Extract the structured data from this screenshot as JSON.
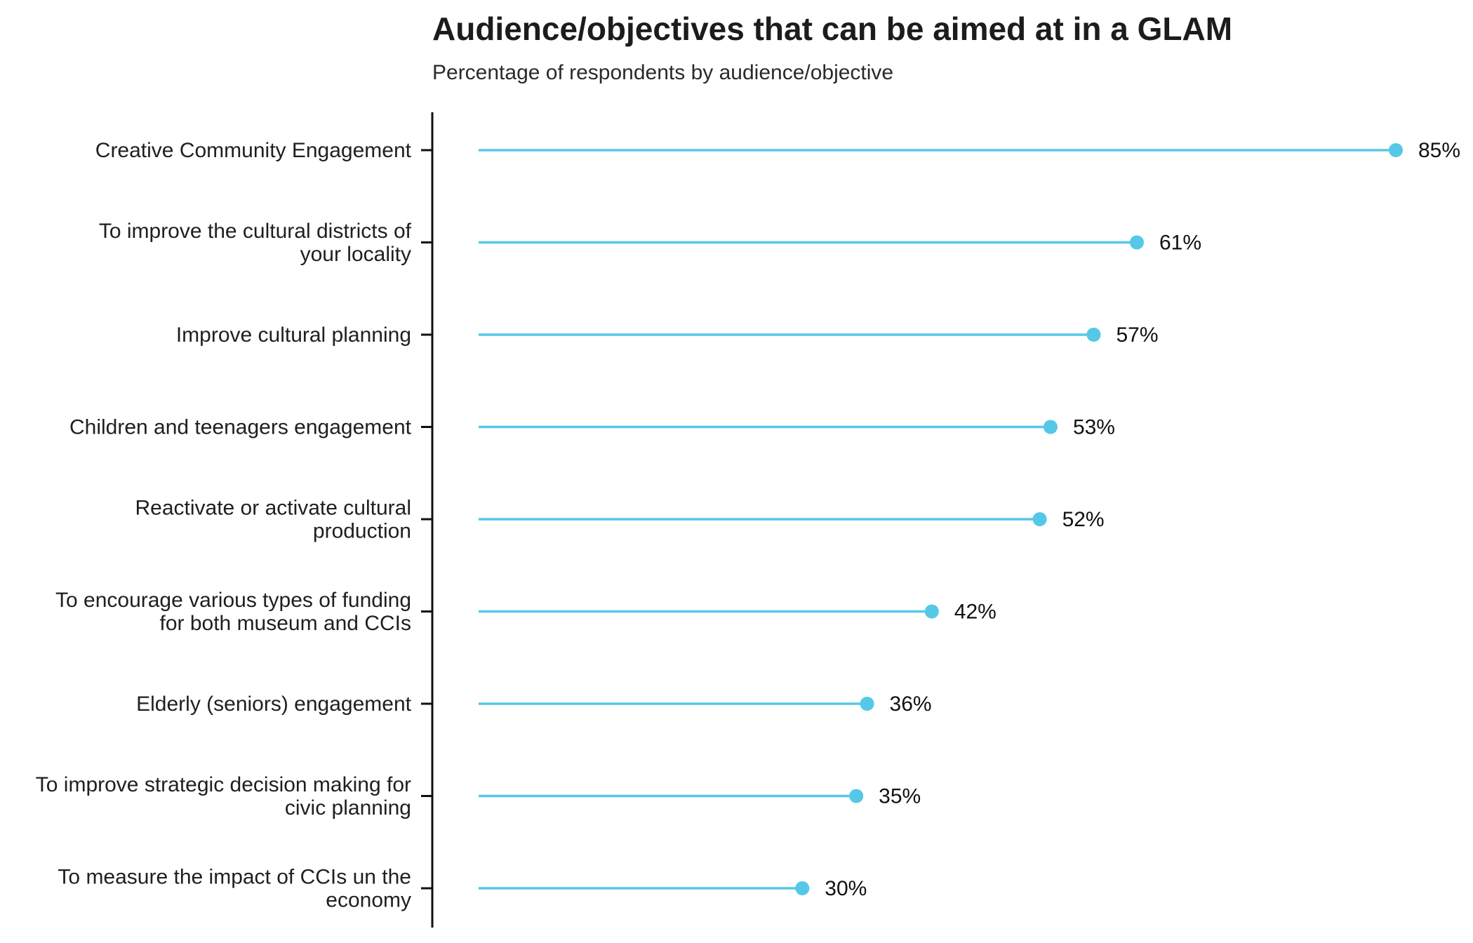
{
  "chart_data": {
    "type": "lollipop",
    "title": "Audience/objectives that can be aimed at in a GLAM",
    "subtitle": "Percentage of respondents by audience/objective",
    "xlabel": "",
    "ylabel": "",
    "xlim": [
      0,
      85
    ],
    "grid": false,
    "legend": "none",
    "color": "#55c8e8",
    "value_suffix": "%",
    "categories": [
      {
        "label": "Creative Community Engagement",
        "lines": [
          "Creative Community Engagement"
        ],
        "value": 85
      },
      {
        "label": "To improve the cultural districts of your locality",
        "lines": [
          "To improve the cultural districts of",
          "your locality"
        ],
        "value": 61
      },
      {
        "label": "Improve cultural planning",
        "lines": [
          "Improve cultural planning"
        ],
        "value": 57
      },
      {
        "label": "Children and teenagers engagement",
        "lines": [
          "Children and teenagers engagement"
        ],
        "value": 53
      },
      {
        "label": "Reactivate or activate cultural production",
        "lines": [
          "Reactivate or activate cultural",
          "production"
        ],
        "value": 52
      },
      {
        "label": "To encourage various types of funding for both museum and CCIs",
        "lines": [
          "To encourage various types of funding",
          "for both museum and CCIs"
        ],
        "value": 42
      },
      {
        "label": "Elderly (seniors) engagement",
        "lines": [
          "Elderly (seniors) engagement"
        ],
        "value": 36
      },
      {
        "label": "To improve strategic decision making for civic planning",
        "lines": [
          "To improve strategic decision making for",
          "civic planning"
        ],
        "value": 35
      },
      {
        "label": "To measure the impact of CCIs un the economy",
        "lines": [
          "To measure the impact of CCIs un the",
          "economy"
        ],
        "value": 30
      }
    ]
  }
}
